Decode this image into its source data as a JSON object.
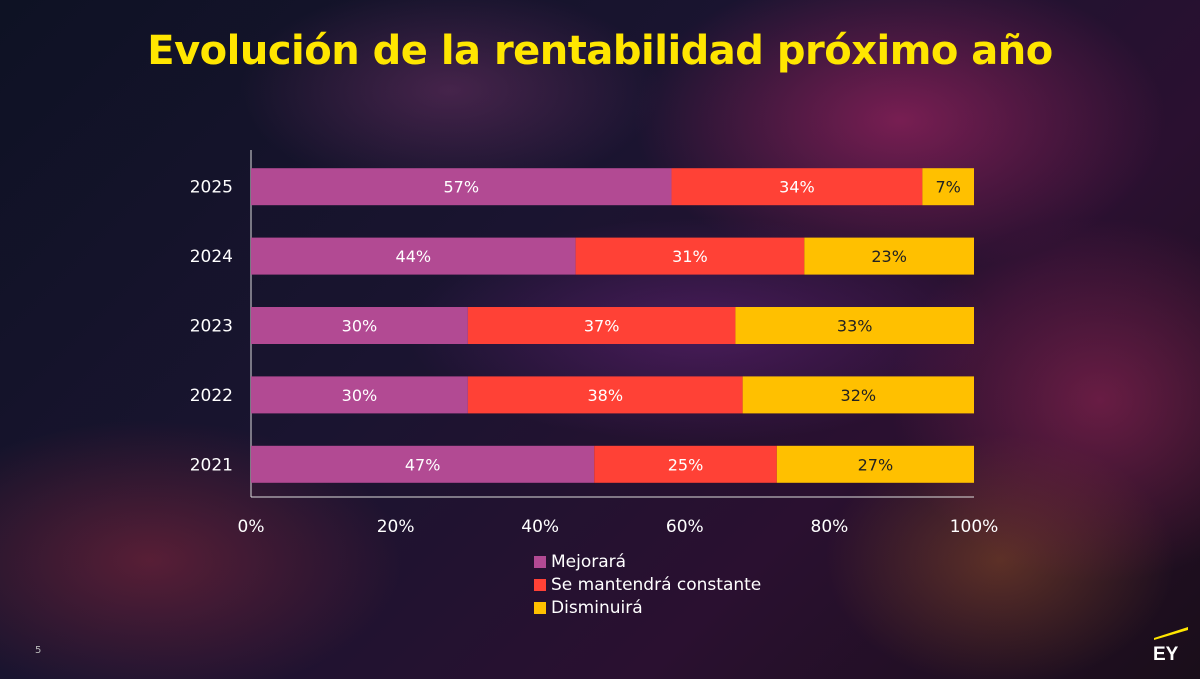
{
  "page_title": "Evolución de la rentabilidad próximo año",
  "page_number": "5",
  "logo": "EY",
  "chart_data": {
    "type": "bar",
    "orientation": "horizontal",
    "stacked": "100%",
    "title": "Evolución de la rentabilidad próximo año",
    "categories": [
      "2025",
      "2024",
      "2023",
      "2022",
      "2021"
    ],
    "series": [
      {
        "name": "Mejorará",
        "color": "#b24a93",
        "values": [
          57,
          44,
          30,
          30,
          47
        ]
      },
      {
        "name": "Se mantendrá constante",
        "color": "#ff4136",
        "values": [
          34,
          31,
          37,
          38,
          25
        ]
      },
      {
        "name": "Disminuirá",
        "color": "#ffc000",
        "values": [
          7,
          23,
          33,
          32,
          27
        ]
      }
    ],
    "xticks": [
      "0%",
      "20%",
      "40%",
      "60%",
      "80%",
      "100%"
    ],
    "xlim": [
      0,
      100
    ],
    "grid": false,
    "legend": "bottom"
  }
}
